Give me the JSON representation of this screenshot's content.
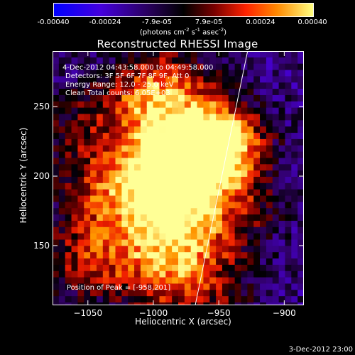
{
  "colorbar": {
    "ticks": [
      "-0.00040",
      "-0.00024",
      "-7.9e-05",
      "7.9e-05",
      "0.00024",
      "0.00040"
    ],
    "unit_prefix": "(photons cm",
    "unit_sup1": "-2",
    "unit_mid": " s",
    "unit_sup2": "-1",
    "unit_mid2": " asec",
    "unit_sup3": "-2",
    "unit_suffix": ")"
  },
  "chart_data": {
    "type": "heatmap",
    "title": "Reconstructed RHESSI Image",
    "xlabel": "Heliocentric X (arcsec)",
    "ylabel": "Heliocentric Y (arcsec)",
    "xlim": [
      -1077,
      -885
    ],
    "ylim": [
      107,
      290
    ],
    "xticks": [
      -1050,
      -1000,
      -950,
      -900
    ],
    "xtick_labels": [
      "−1050",
      "−1000",
      "−950",
      "−900"
    ],
    "yticks": [
      150,
      200,
      250
    ],
    "ytick_labels": [
      "150",
      "200",
      "250"
    ],
    "colorscale_range": [
      -0.0004,
      0.0004
    ],
    "limb_line": [
      [
        -968,
        107
      ],
      [
        -928,
        290
      ]
    ],
    "annotations": [
      "4-Dec-2012 04:43:58.000 to 04:49:58.000",
      "Detectors: 3F 5F 6F 7F 8F 9F, Att 0",
      "Energy Range: 12.0 - 25.0 keV",
      "Clean     Total counts: 6.05E+03"
    ],
    "peak_label": "Position of Peak = [-958,201]",
    "sources": [
      {
        "x": -985,
        "y": 210,
        "strength": 1.0
      },
      {
        "x": -960,
        "y": 220,
        "strength": 0.85
      },
      {
        "x": -942,
        "y": 222,
        "strength": 0.75
      },
      {
        "x": -1000,
        "y": 185,
        "strength": 0.8
      },
      {
        "x": -975,
        "y": 160,
        "strength": 0.7
      },
      {
        "x": -1010,
        "y": 250,
        "strength": 0.6
      },
      {
        "x": -985,
        "y": 265,
        "strength": 0.55
      },
      {
        "x": -1040,
        "y": 190,
        "strength": 0.55
      },
      {
        "x": -1025,
        "y": 145,
        "strength": 0.5
      },
      {
        "x": -990,
        "y": 125,
        "strength": 0.55
      },
      {
        "x": -1055,
        "y": 235,
        "strength": 0.35
      },
      {
        "x": -1060,
        "y": 140,
        "strength": 0.4
      },
      {
        "x": -935,
        "y": 175,
        "strength": 0.4
      },
      {
        "x": -950,
        "y": 120,
        "strength": 0.35
      }
    ]
  },
  "footer": "3-Dec-2012 23:00"
}
